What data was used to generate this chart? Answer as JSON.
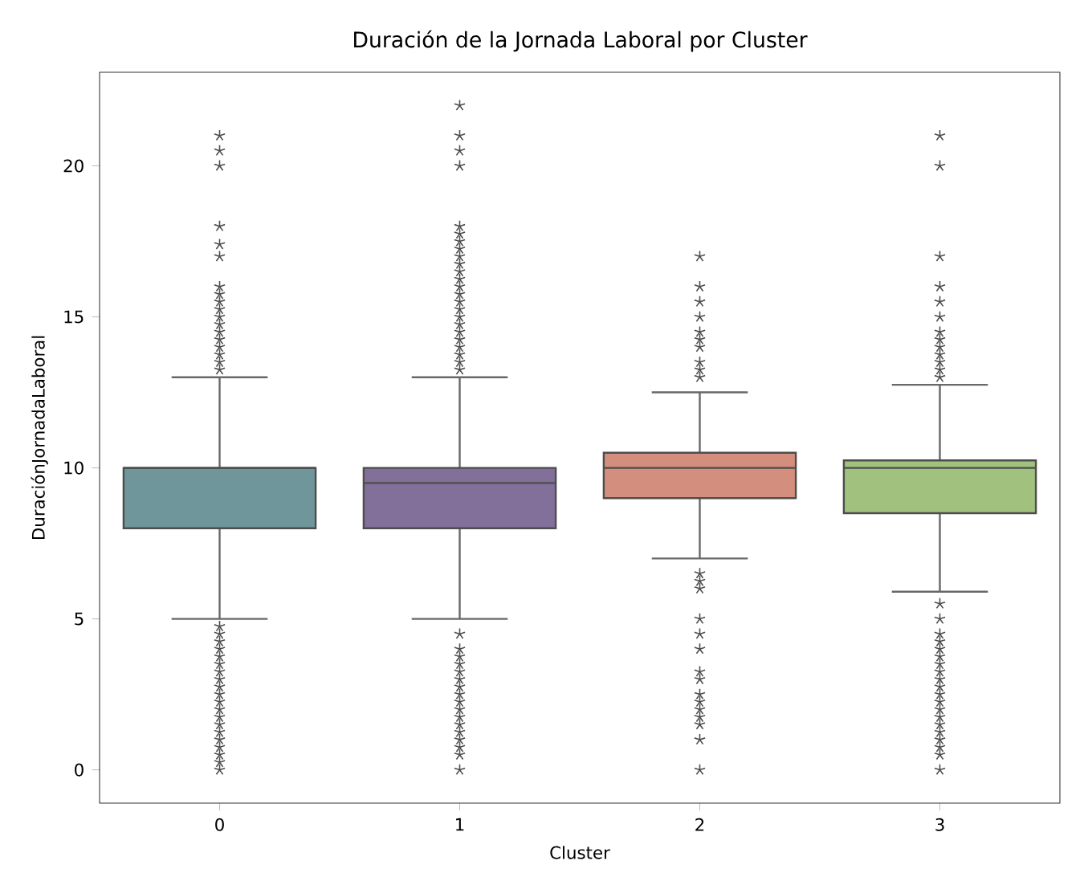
{
  "chart_data": {
    "type": "box",
    "title": "Duración de la Jornada Laboral por Cluster",
    "xlabel": "Cluster",
    "ylabel": "DuraciónJornadaLaboral",
    "categories": [
      "0",
      "1",
      "2",
      "3"
    ],
    "colors": [
      "#6f969a",
      "#826f9a",
      "#d48e7d",
      "#a0c27e"
    ],
    "boxes": [
      {
        "low": 5,
        "q1": 8,
        "median": 10,
        "q3": 10,
        "high": 13,
        "outliers": [
          21,
          20.5,
          20,
          18,
          17.4,
          17,
          16,
          15.75,
          15.5,
          15.25,
          15,
          14.75,
          14.5,
          14.25,
          14,
          13.75,
          13.5,
          13.25,
          4.75,
          4.5,
          4.25,
          4,
          3.75,
          3.5,
          3.25,
          3,
          2.75,
          2.5,
          2.25,
          2,
          1.75,
          1.5,
          1.25,
          1,
          0.75,
          0.5,
          0.25,
          0
        ]
      },
      {
        "low": 5,
        "q1": 8,
        "median": 9.5,
        "q3": 10,
        "high": 13,
        "outliers": [
          22,
          21,
          20.5,
          20,
          18,
          17.75,
          17.5,
          17.25,
          17,
          16.75,
          16.5,
          16.25,
          16,
          15.75,
          15.5,
          15.25,
          15,
          14.75,
          14.5,
          14.25,
          14,
          13.75,
          13.5,
          13.25,
          4.5,
          4,
          3.75,
          3.5,
          3.25,
          3,
          2.75,
          2.5,
          2.25,
          2,
          1.75,
          1.5,
          1.25,
          1,
          0.75,
          0.5,
          0
        ]
      },
      {
        "low": 7,
        "q1": 9,
        "median": 10,
        "q3": 10.5,
        "high": 12.5,
        "outliers": [
          17,
          16,
          15.5,
          15,
          14.5,
          14.25,
          14,
          13.5,
          13.25,
          13,
          6.5,
          6.25,
          6,
          5,
          4.5,
          4,
          3.25,
          3,
          2.5,
          2.25,
          2,
          1.75,
          1.5,
          1,
          0
        ]
      },
      {
        "low": 5.9,
        "q1": 8.5,
        "median": 10,
        "q3": 10.25,
        "high": 12.75,
        "outliers": [
          21,
          20,
          17,
          16,
          15.5,
          15,
          14.5,
          14.25,
          14,
          13.75,
          13.5,
          13.25,
          13,
          5.5,
          5,
          4.5,
          4.25,
          4,
          3.75,
          3.5,
          3.25,
          3,
          2.75,
          2.5,
          2.25,
          2,
          1.75,
          1.5,
          1.25,
          1,
          0.75,
          0.5,
          0
        ]
      }
    ],
    "ylim": [
      -1.1,
      23.1
    ],
    "yticks": [
      0,
      5,
      10,
      15,
      20
    ],
    "marker": "star"
  }
}
